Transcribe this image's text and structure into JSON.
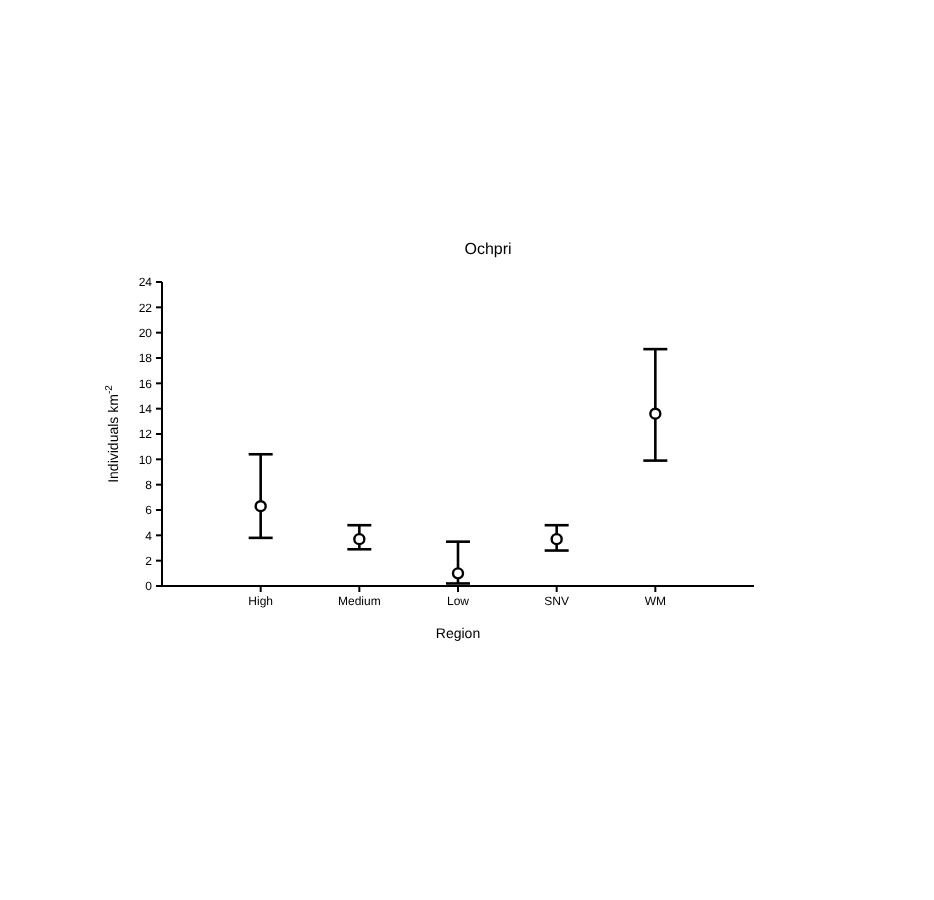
{
  "chart_data": {
    "type": "scatter",
    "title": "Ochpri",
    "xlabel": "Region",
    "ylabel": "Individuals km$^{-2}$",
    "categories": [
      "High",
      "Medium",
      "Low",
      "SNV",
      "WM"
    ],
    "values": [
      6.3,
      3.7,
      1.0,
      3.7,
      13.6
    ],
    "errors": [
      [
        3.8,
        10.4
      ],
      [
        2.9,
        4.8
      ],
      [
        0.2,
        3.5
      ],
      [
        2.8,
        4.8
      ],
      [
        9.9,
        18.7
      ]
    ],
    "color": "#000000",
    "marker": "circle",
    "ylim": [
      0,
      24
    ],
    "yticks": [
      0,
      2,
      4,
      6,
      8,
      10,
      12,
      14,
      16,
      18,
      20,
      22,
      24
    ],
    "grid": false,
    "legend": false
  }
}
